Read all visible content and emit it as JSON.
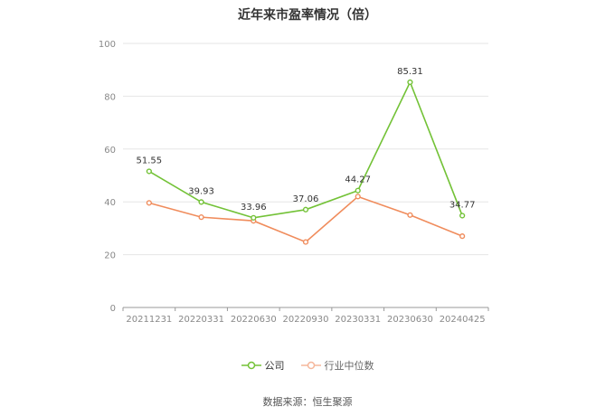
{
  "title": "近年来市盈率情况（倍）",
  "source_text": "数据来源：恒生聚源",
  "colors": {
    "company": "#73c237",
    "industry": "#f08c5c",
    "grid": "#e6e6e6",
    "axis": "#999999",
    "tick": "#888888"
  },
  "chart_data": {
    "type": "line",
    "title": "近年来市盈率情况（倍）",
    "categories": [
      "20211231",
      "20220331",
      "20220630",
      "20220930",
      "20230331",
      "20230630",
      "20240425"
    ],
    "ylim": [
      0,
      100
    ],
    "yticks": [
      "0",
      "20",
      "40",
      "60",
      "80",
      "100"
    ],
    "grid": true,
    "legend_position": "bottom",
    "series": [
      {
        "name": "公司",
        "values": [
          51.55,
          39.93,
          33.96,
          37.06,
          44.27,
          85.31,
          34.77
        ],
        "labels": [
          "51.55",
          "39.93",
          "33.96",
          "37.06",
          "44.27",
          "85.31",
          "34.77"
        ]
      },
      {
        "name": "行业中位数",
        "values": [
          39.6,
          34.2,
          32.8,
          24.8,
          42.0,
          35.0,
          27.0
        ]
      }
    ]
  }
}
